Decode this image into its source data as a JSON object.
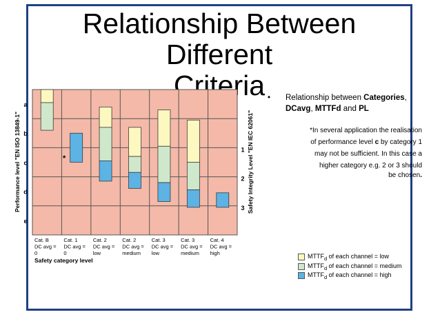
{
  "slide": {
    "title_line1": "Relationship Between Different",
    "title_line2": "Criteria"
  },
  "bullet": {
    "symbol": "•",
    "prefix": "Relationship between ",
    "bold1": "Categories",
    "sep1": ", ",
    "bold2": "DCavg",
    "sep2": ", ",
    "bold3": "MTTFd",
    "sep3": " and ",
    "bold4": "PL"
  },
  "note": {
    "line1": "*In several application the realisation",
    "line2_pre": "of performance level ",
    "line2_bold": "c",
    "line2_post": " by category 1",
    "line3": "may not be sufficient. In this case a",
    "line4": "higher category e.g. 2 or 3 should",
    "line5": "be chosen",
    "line5_end": "."
  },
  "chart_data": {
    "type": "diagram",
    "left_axis_label": "Performance level \"EN ISO 13849-1\"",
    "right_axis_label": "Safety Integrity Level \"EN IEC 62061\"",
    "pl_levels": [
      "a",
      "b",
      "c",
      "d",
      "e"
    ],
    "sil_levels": [
      "1",
      "2",
      "3"
    ],
    "x_axis_label": "Safety category level",
    "asterisk": "*",
    "categories": [
      {
        "line1": "Cat. B",
        "line2": "DC avg =",
        "line3": "0"
      },
      {
        "line1": "Cat. 1",
        "line2": "DC avg =",
        "line3": "0"
      },
      {
        "line1": "Cat. 2",
        "line2": "DC avg =",
        "line3": "low"
      },
      {
        "line1": "Cat. 2",
        "line2": "DC avg =",
        "line3": "medium"
      },
      {
        "line1": "Cat. 3",
        "line2": "DC avg =",
        "line3": "low"
      },
      {
        "line1": "Cat. 3",
        "line2": "DC avg =",
        "line3": "medium"
      },
      {
        "line1": "Cat. 4",
        "line2": "DC avg =",
        "line3": "high"
      }
    ],
    "bars": [
      {
        "category": 0,
        "segments": [
          {
            "mttf": "low",
            "from_pl": 0.0,
            "to_pl": 0.45
          },
          {
            "mttf": "medium",
            "from_pl": 0.45,
            "to_pl": 1.4
          }
        ]
      },
      {
        "category": 1,
        "segments": [
          {
            "mttf": "high",
            "from_pl": 1.5,
            "to_pl": 2.5
          }
        ]
      },
      {
        "category": 2,
        "segments": [
          {
            "mttf": "low",
            "from_pl": 0.6,
            "to_pl": 1.3
          },
          {
            "mttf": "medium",
            "from_pl": 1.3,
            "to_pl": 2.45
          },
          {
            "mttf": "high",
            "from_pl": 2.45,
            "to_pl": 3.15
          }
        ]
      },
      {
        "category": 3,
        "segments": [
          {
            "mttf": "low",
            "from_pl": 1.3,
            "to_pl": 2.3
          },
          {
            "mttf": "medium",
            "from_pl": 2.3,
            "to_pl": 2.85
          },
          {
            "mttf": "high",
            "from_pl": 2.85,
            "to_pl": 3.4
          }
        ]
      },
      {
        "category": 4,
        "segments": [
          {
            "mttf": "low",
            "from_pl": 0.7,
            "to_pl": 1.95
          },
          {
            "mttf": "medium",
            "from_pl": 1.95,
            "to_pl": 3.2
          },
          {
            "mttf": "high",
            "from_pl": 3.2,
            "to_pl": 3.85
          }
        ]
      },
      {
        "category": 5,
        "segments": [
          {
            "mttf": "low",
            "from_pl": 1.05,
            "to_pl": 2.5
          },
          {
            "mttf": "medium",
            "from_pl": 2.5,
            "to_pl": 3.45
          },
          {
            "mttf": "high",
            "from_pl": 3.45,
            "to_pl": 4.05
          }
        ]
      },
      {
        "category": 6,
        "segments": [
          {
            "mttf": "high",
            "from_pl": 3.55,
            "to_pl": 4.05
          }
        ]
      }
    ],
    "colors": {
      "background": "#f4b9a8",
      "grid": "#555555",
      "low": "#fdf8bf",
      "medium": "#cfe8cc",
      "high": "#5cb3e4",
      "border": "#1f3f86"
    },
    "legend": [
      {
        "key": "low",
        "prefix": "MTTF",
        "sub": "d",
        "suffix": " of each channel = low"
      },
      {
        "key": "medium",
        "prefix": "MTTF",
        "sub": "d",
        "suffix": " of each channel = medium"
      },
      {
        "key": "high",
        "prefix": "MTTF",
        "sub": "d",
        "suffix": " of each channel = high"
      }
    ]
  }
}
